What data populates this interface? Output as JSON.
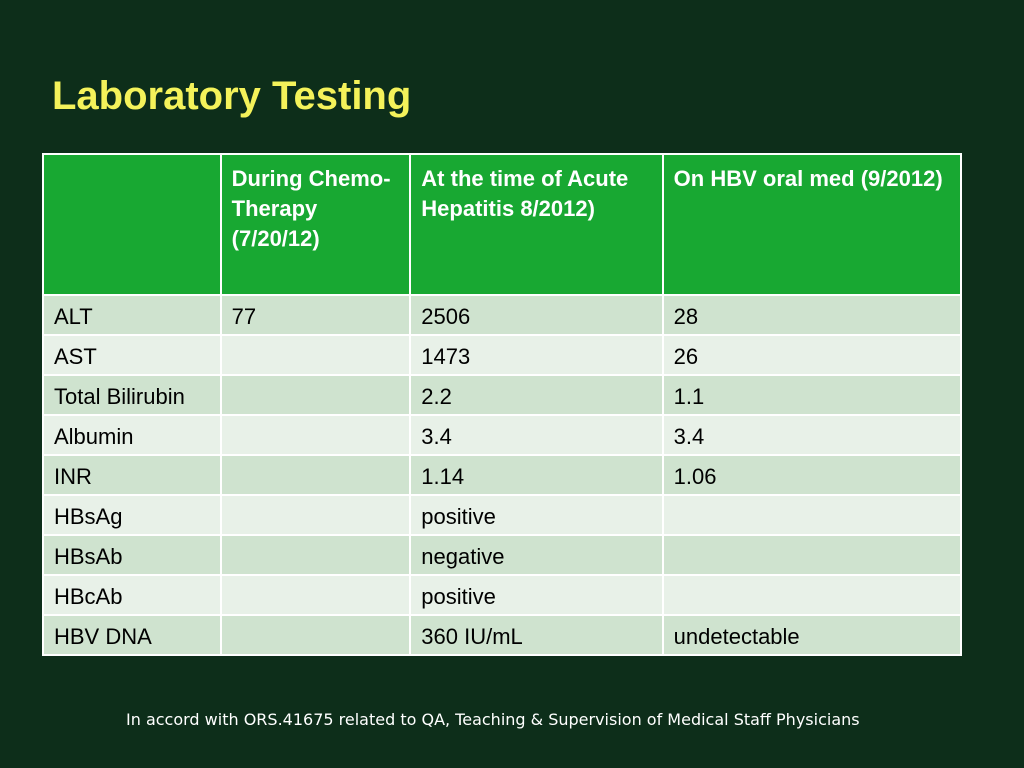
{
  "title": "Laboratory Testing",
  "table": {
    "headers": [
      "",
      "During Chemo-Therapy (7/20/12)",
      "At the time of Acute Hepatitis 8/2012)",
      "On HBV oral med (9/2012)"
    ],
    "rows": [
      [
        "ALT",
        "77",
        "2506",
        "28"
      ],
      [
        "AST",
        "",
        "1473",
        "26"
      ],
      [
        "Total Bilirubin",
        "",
        "2.2",
        "1.1"
      ],
      [
        "Albumin",
        "",
        "3.4",
        "3.4"
      ],
      [
        "INR",
        "",
        "1.14",
        "1.06"
      ],
      [
        "HBsAg",
        "",
        "positive",
        ""
      ],
      [
        "HBsAb",
        "",
        "negative",
        ""
      ],
      [
        "HBcAb",
        "",
        "positive",
        ""
      ],
      [
        "HBV DNA",
        "",
        "360 IU/mL",
        "undetectable"
      ]
    ]
  },
  "footnote": "In accord with ORS.41675 related to QA, Teaching & Supervision of Medical Staff Physicians",
  "colors": {
    "background": "#0d2e1a",
    "title": "#f4f25a",
    "header": "#18a832",
    "row_odd": "#cfe3cf",
    "row_even": "#e8f1e8"
  }
}
